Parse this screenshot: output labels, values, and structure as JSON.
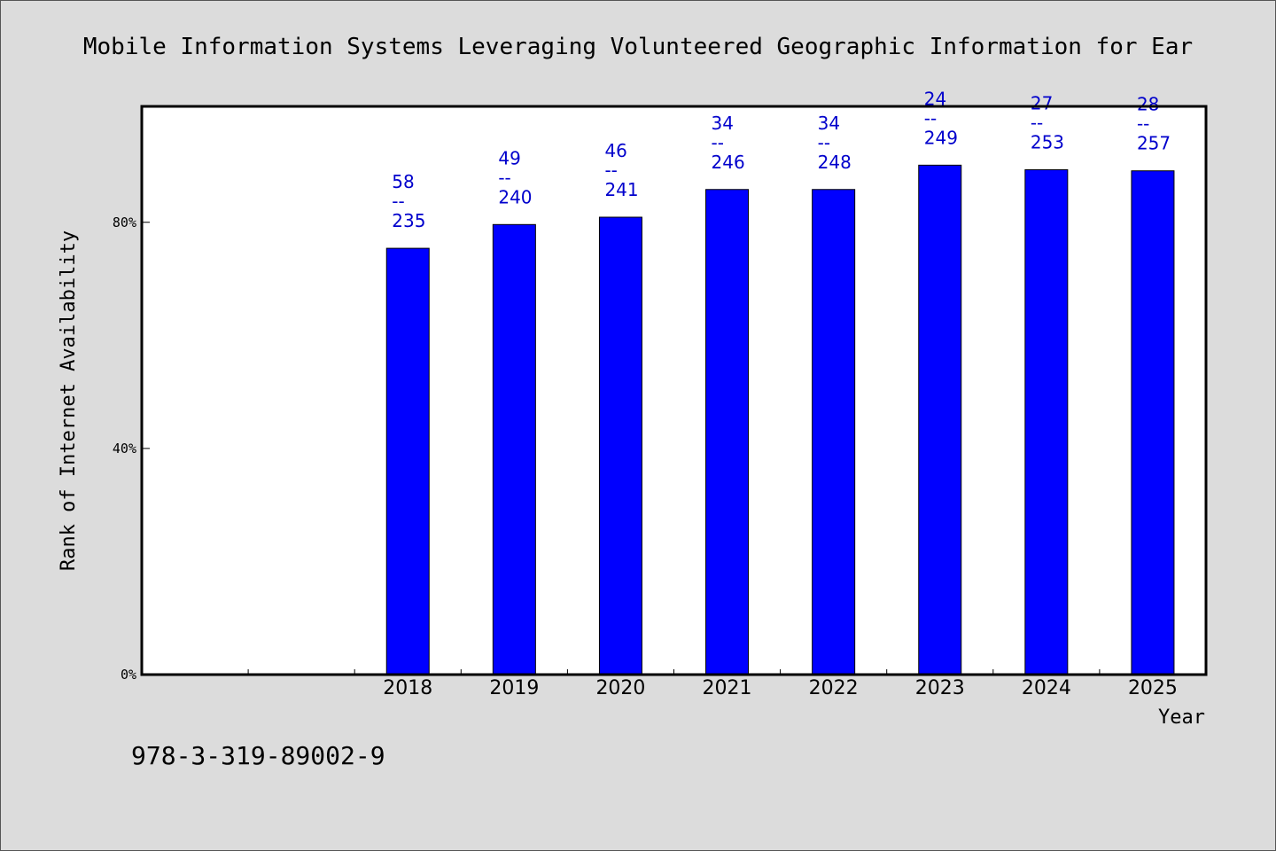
{
  "chart_data": {
    "type": "bar",
    "title": "Mobile Information Systems Leveraging Volunteered Geographic Information for Ear",
    "xlabel": "Year",
    "ylabel": "Rank of Internet Availability",
    "categories": [
      "2018",
      "2019",
      "2020",
      "2021",
      "2022",
      "2023",
      "2024",
      "2025"
    ],
    "values": [
      75.4,
      79.6,
      80.9,
      85.8,
      85.8,
      90.1,
      89.3,
      89.1
    ],
    "data_labels": [
      {
        "top": "58",
        "sep": "--",
        "bottom": "235"
      },
      {
        "top": "49",
        "sep": "--",
        "bottom": "240"
      },
      {
        "top": "46",
        "sep": "--",
        "bottom": "241"
      },
      {
        "top": "34",
        "sep": "--",
        "bottom": "246"
      },
      {
        "top": "34",
        "sep": "--",
        "bottom": "248"
      },
      {
        "top": "24",
        "sep": "--",
        "bottom": "249"
      },
      {
        "top": "27",
        "sep": "--",
        "bottom": "253"
      },
      {
        "top": "28",
        "sep": "--",
        "bottom": "257"
      }
    ],
    "yticks": [
      {
        "value": 0,
        "label": "0%"
      },
      {
        "value": 40,
        "label": "40%"
      },
      {
        "value": 80,
        "label": "80%"
      }
    ],
    "ylim": [
      0,
      100.5
    ],
    "x_slots": 10,
    "x_first_category_slot": 2,
    "grid": false,
    "legend": "none",
    "bar_color": "#0000ff",
    "label_color": "#0000cc"
  },
  "footnote": "978-3-319-89002-9"
}
